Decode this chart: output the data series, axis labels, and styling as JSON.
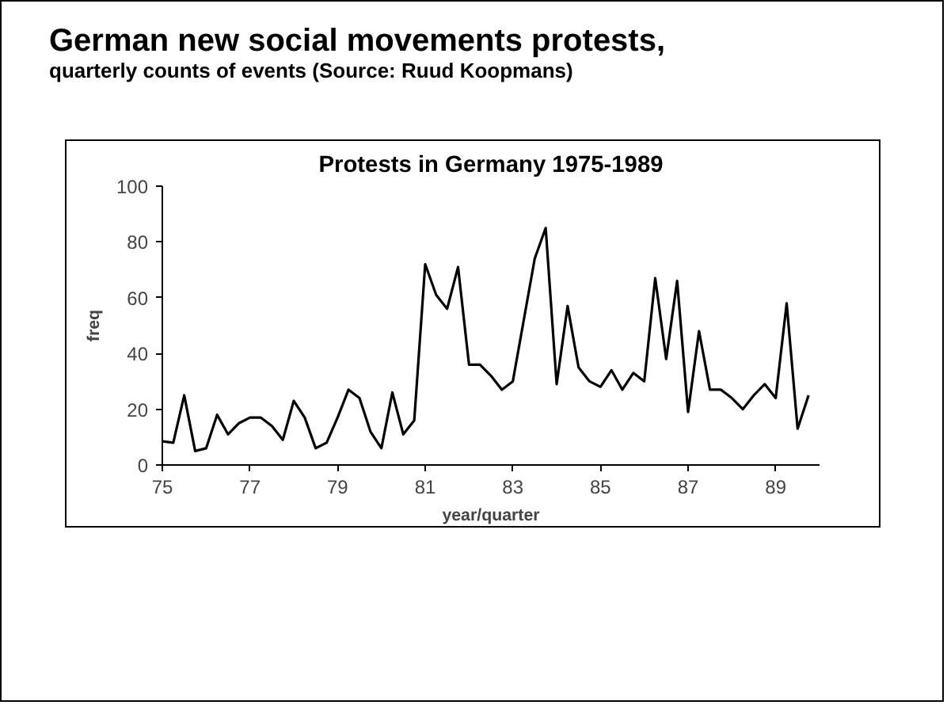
{
  "chart_data": {
    "type": "line",
    "title": "Protests in Germany 1975-1989",
    "xlabel": "year/quarter",
    "ylabel": "freq",
    "annotations": [
      "German new social movements protests,",
      "quarterly counts of events (Source: Ruud Koopmans)"
    ],
    "x": [
      75,
      75.25,
      75.5,
      75.75,
      76,
      76.25,
      76.5,
      76.75,
      77,
      77.25,
      77.5,
      77.75,
      78,
      78.25,
      78.5,
      78.75,
      79,
      79.25,
      79.5,
      79.75,
      80,
      80.25,
      80.5,
      80.75,
      81,
      81.25,
      81.5,
      81.75,
      82,
      82.25,
      82.5,
      82.75,
      83,
      83.25,
      83.5,
      83.75,
      84,
      84.25,
      84.5,
      84.75,
      85,
      85.25,
      85.5,
      85.75,
      86,
      86.25,
      86.5,
      86.75,
      87,
      87.25,
      87.5,
      87.75,
      88,
      88.25,
      88.5,
      88.75,
      89,
      89.25,
      89.5,
      89.75
    ],
    "series": [
      {
        "color": "#000000",
        "values": [
          8.5,
          8,
          25,
          5,
          6,
          18,
          11,
          15,
          17,
          17,
          14,
          9,
          23,
          17,
          6,
          8,
          17,
          27,
          24,
          12,
          6,
          26,
          11,
          16,
          72,
          61,
          56,
          71,
          36,
          36,
          32,
          27,
          30,
          52,
          74,
          85,
          29,
          57,
          35,
          30,
          28,
          34,
          27,
          33,
          30,
          67,
          38,
          66,
          19,
          48,
          27,
          27,
          24,
          20,
          25,
          29,
          24,
          58,
          13,
          25
        ]
      }
    ],
    "xlim": [
      75,
      90
    ],
    "ylim": [
      0,
      100
    ],
    "xticks": [
      75,
      77,
      79,
      81,
      83,
      85,
      87,
      89
    ],
    "yticks": [
      0,
      20,
      40,
      60,
      80,
      100
    ],
    "grid": false,
    "marker": "none",
    "line_style": "solid"
  }
}
